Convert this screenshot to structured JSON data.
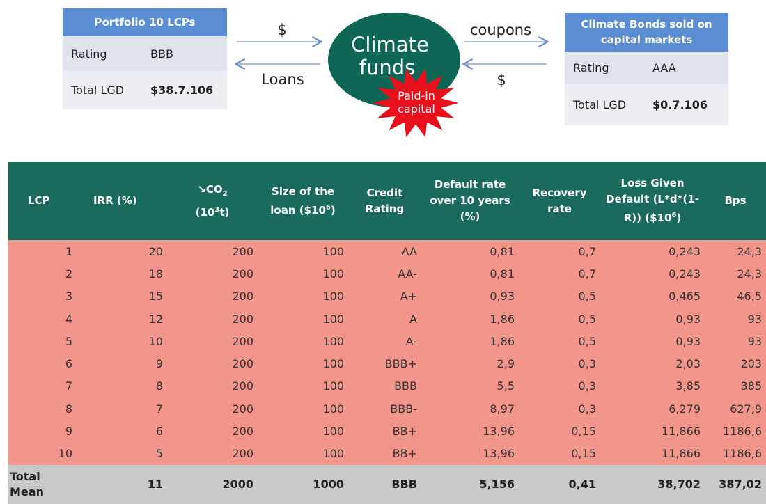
{
  "left_box": {
    "title": "Portfolio 10 LCPs",
    "rows": [
      [
        "Rating",
        "BBB"
      ],
      [
        "Total LGD",
        "$38.7.106"
      ]
    ]
  },
  "flows": {
    "left_top": "$",
    "left_bottom": "Loans",
    "right_top": "coupons",
    "right_bottom": "$"
  },
  "center": {
    "title": "Climate funds",
    "badge": "Paid-in capital"
  },
  "right_box": {
    "title": "Climate Bonds sold on capital markets",
    "rows": [
      [
        "Rating",
        "AAA"
      ],
      [
        "Total LGD",
        "$0.7.106"
      ]
    ]
  },
  "table": {
    "headers": [
      [
        "LCP"
      ],
      [
        "IRR (%)"
      ],
      [
        "↘CO",
        "2",
        "(10",
        "3",
        "t)"
      ],
      [
        "Size of the loan ($10",
        "6",
        ")"
      ],
      [
        "Credit Rating"
      ],
      [
        "Default rate over 10 years (%)"
      ],
      [
        "Recovery rate"
      ],
      [
        "Loss Given Default (L*d*(1-R)) ($10",
        "6",
        ")"
      ],
      [
        "Bps"
      ]
    ],
    "rows": [
      [
        "1",
        "20",
        "200",
        "100",
        "AA",
        "0,81",
        "0,7",
        "0,243",
        "24,3"
      ],
      [
        "2",
        "18",
        "200",
        "100",
        "AA-",
        "0,81",
        "0,7",
        "0,243",
        "24,3"
      ],
      [
        "3",
        "15",
        "200",
        "100",
        "A+",
        "0,93",
        "0,5",
        "0,465",
        "46,5"
      ],
      [
        "4",
        "12",
        "200",
        "100",
        "A",
        "1,86",
        "0,5",
        "0,93",
        "93"
      ],
      [
        "5",
        "10",
        "200",
        "100",
        "A-",
        "1,86",
        "0,5",
        "0,93",
        "93"
      ],
      [
        "6",
        "9",
        "200",
        "100",
        "BBB+",
        "2,9",
        "0,3",
        "2,03",
        "203"
      ],
      [
        "7",
        "8",
        "200",
        "100",
        "BBB",
        "5,5",
        "0,3",
        "3,85",
        "385"
      ],
      [
        "8",
        "7",
        "200",
        "100",
        "BBB-",
        "8,97",
        "0,3",
        "6,279",
        "627,9"
      ],
      [
        "9",
        "6",
        "200",
        "100",
        "BB+",
        "13,96",
        "0,15",
        "11,866",
        "1186,6"
      ],
      [
        "10",
        "5",
        "200",
        "100",
        "BB+",
        "13,96",
        "0,15",
        "11,866",
        "1186,6"
      ]
    ],
    "total": [
      "Total Mean",
      "11",
      "2000",
      "1000",
      "BBB",
      "5,156",
      "0,41",
      "38,702",
      "387,02"
    ]
  }
}
